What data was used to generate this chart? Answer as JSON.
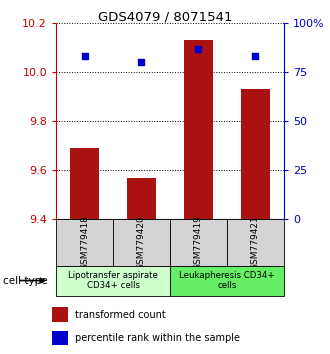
{
  "title": "GDS4079 / 8071541",
  "samples": [
    "GSM779418",
    "GSM779420",
    "GSM779419",
    "GSM779421"
  ],
  "transformed_counts": [
    9.69,
    9.57,
    10.13,
    9.93
  ],
  "percentile_ranks": [
    83,
    80,
    87,
    83
  ],
  "ylim_left": [
    9.4,
    10.2
  ],
  "ylim_right": [
    0,
    100
  ],
  "yticks_left": [
    9.4,
    9.6,
    9.8,
    10.0,
    10.2
  ],
  "yticks_right": [
    0,
    25,
    50,
    75,
    100
  ],
  "ytick_labels_right": [
    "0",
    "25",
    "50",
    "75",
    "100%"
  ],
  "bar_color": "#aa1111",
  "dot_color": "#0000cc",
  "cell_type_groups": [
    {
      "label": "Lipotransfer aspirate\nCD34+ cells",
      "color": "#ccffcc",
      "indices": [
        0,
        1
      ]
    },
    {
      "label": "Leukapheresis CD34+\ncells",
      "color": "#66ee66",
      "indices": [
        2,
        3
      ]
    }
  ],
  "cell_type_label": "cell type",
  "legend_bar_label": "transformed count",
  "legend_dot_label": "percentile rank within the sample",
  "left_axis_color": "#cc0000",
  "right_axis_color": "#0000cc",
  "bar_width": 0.5,
  "dot_size": 25
}
